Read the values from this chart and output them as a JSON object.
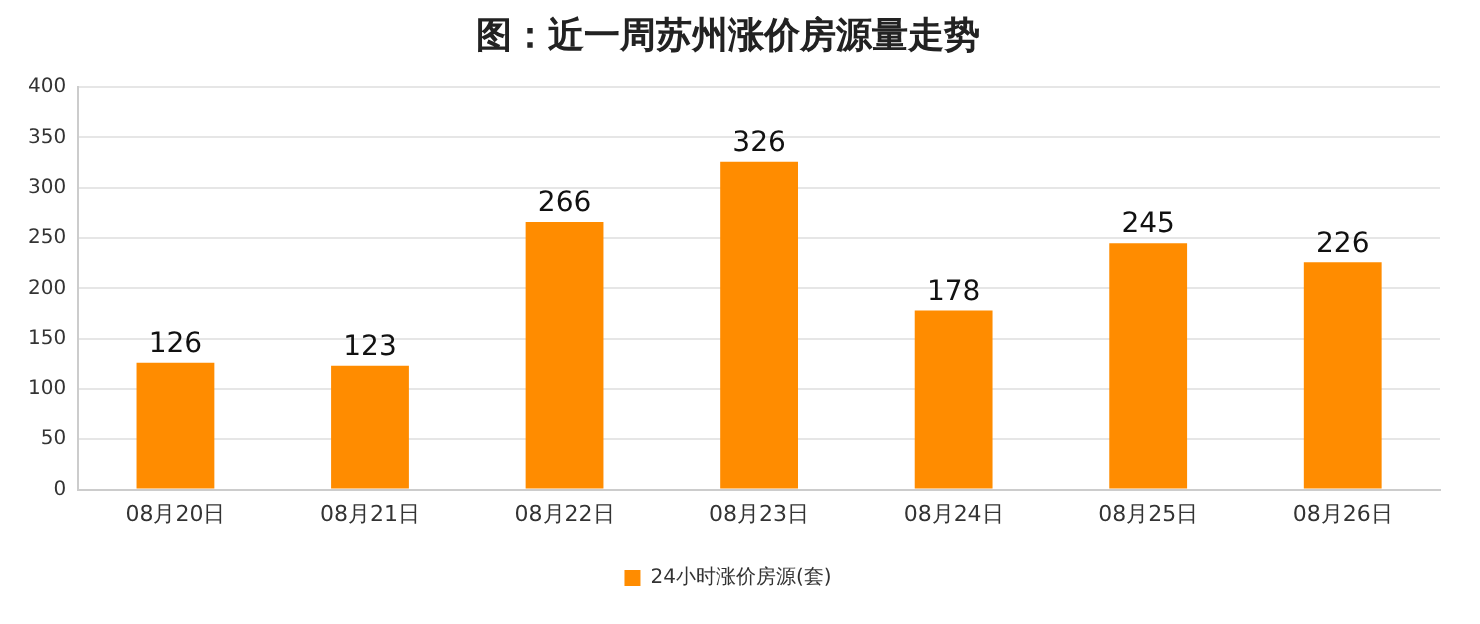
{
  "chart_data": {
    "type": "bar",
    "title": "图：近一周苏州涨价房源量走势",
    "categories": [
      "08月20日",
      "08月21日",
      "08月22日",
      "08月23日",
      "08月24日",
      "08月25日",
      "08月26日"
    ],
    "series": [
      {
        "name": "24小时涨价房源(套)",
        "color": "#ff8c00",
        "values": [
          126,
          123,
          266,
          326,
          178,
          245,
          226
        ]
      }
    ],
    "ylim": [
      0,
      400
    ],
    "yticks": [
      0,
      50,
      100,
      150,
      200,
      250,
      300,
      350,
      400
    ],
    "grid": "y",
    "legend": "bottom",
    "data_labels": true
  }
}
